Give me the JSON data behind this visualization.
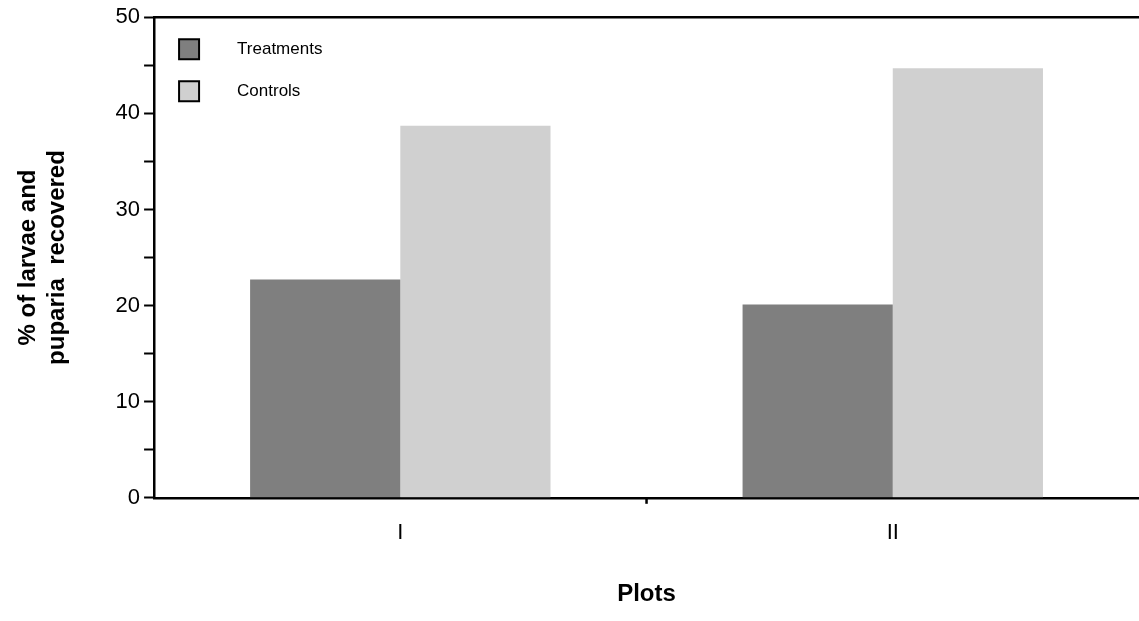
{
  "chart_data": {
    "type": "bar",
    "xlabel": "Plots",
    "ylabel": "% of larvae and\npuparia  recovered",
    "categories": [
      "I",
      "II"
    ],
    "series": [
      {
        "name": "Treatments",
        "color": "#7f7f7f",
        "values": [
          22.7,
          20.1
        ]
      },
      {
        "name": "Controls",
        "color": "#d0d0d0",
        "values": [
          38.7,
          44.7
        ]
      }
    ],
    "ylim": [
      0,
      50
    ],
    "yticks": [
      0,
      {
        "value": 5,
        "label": null
      },
      10,
      {
        "value": 15,
        "label": null
      },
      20,
      {
        "value": 25,
        "label": null
      },
      30,
      {
        "value": 35,
        "label": null
      },
      40,
      {
        "value": 45,
        "label": null
      },
      50
    ],
    "grid": false,
    "legend": "top left"
  }
}
